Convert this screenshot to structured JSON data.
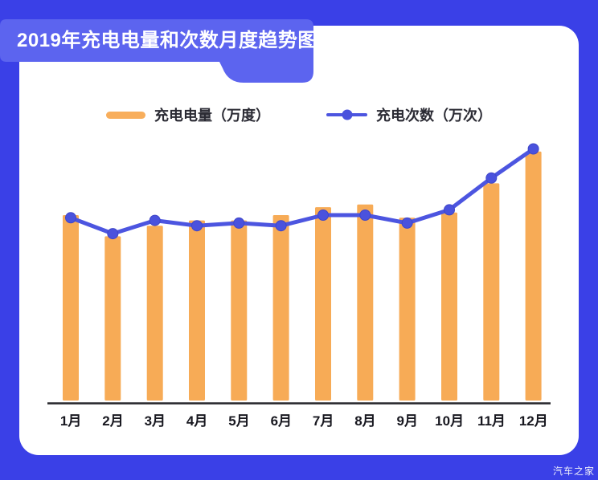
{
  "banner": {
    "title": "2019年充电电量和次数月度趋势图"
  },
  "legend": {
    "bar": {
      "label": "充电电量（万度）",
      "color": "#F8AE5C"
    },
    "line": {
      "label": "充电次数（万次）",
      "color": "#4C55E0"
    }
  },
  "watermark": "汽车之家",
  "colors": {
    "background_blue": "#3A40E7",
    "banner_blue": "#5C64EF",
    "card_white": "#FFFFFF",
    "bar_orange": "#F7AB56",
    "line_blue": "#4C55E0",
    "marker_blue": "#4A52DD",
    "axis_dark": "#26262B",
    "text_dark": "#17171F",
    "title_white": "#FFFFFF"
  },
  "chart_data": {
    "type": "bar+line",
    "title": "2019年充电电量和次数月度趋势图",
    "categories": [
      "1月",
      "2月",
      "3月",
      "4月",
      "5月",
      "6月",
      "7月",
      "8月",
      "9月",
      "10月",
      "11月",
      "12月"
    ],
    "series": [
      {
        "name": "充电电量（万度）",
        "type": "bar",
        "color": "#F7AB56",
        "values": [
          70,
          62,
          66,
          68,
          68,
          70,
          73,
          74,
          69,
          71,
          82,
          94
        ]
      },
      {
        "name": "充电次数（万次）",
        "type": "line",
        "color": "#4C55E0",
        "values": [
          69,
          63,
          68,
          66,
          67,
          66,
          70,
          70,
          67,
          72,
          84,
          95
        ]
      }
    ],
    "xlabel": "",
    "ylabel": "",
    "ylim": [
      0,
      100
    ],
    "grid": false,
    "legend_position": "top",
    "value_note": "no numeric y-axis shown in image; values are estimated relative heights (0-100 of plot height)"
  }
}
